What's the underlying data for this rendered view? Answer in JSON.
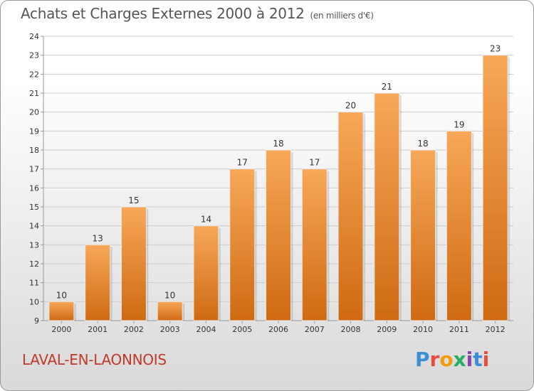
{
  "title": "Achats et Charges Externes 2000 à 2012",
  "unit_label": "(en milliers d'€)",
  "commune": "LAVAL-EN-LAONNOIS",
  "brand": {
    "letters": [
      "P",
      "r",
      "o",
      "x",
      "i",
      "t",
      "i"
    ],
    "colors": [
      "#3b8fd4",
      "#e84c3d",
      "#f39c12",
      "#27ae60",
      "#8e44ad",
      "#3b8fd4",
      "#e84c3d"
    ]
  },
  "colors": {
    "bar_top": "#f7a858",
    "bar_bottom": "#cf6a12",
    "grid": "#cccccc",
    "axis_text": "#333333"
  },
  "chart_data": {
    "type": "bar",
    "categories": [
      "2000",
      "2001",
      "2002",
      "2003",
      "2004",
      "2005",
      "2006",
      "2007",
      "2008",
      "2009",
      "2010",
      "2011",
      "2012"
    ],
    "values": [
      10,
      13,
      15,
      10,
      14,
      17,
      18,
      17,
      20,
      21,
      18,
      19,
      23
    ],
    "ylim": [
      9,
      24
    ],
    "yticks": [
      9,
      10,
      11,
      12,
      13,
      14,
      15,
      16,
      17,
      18,
      19,
      20,
      21,
      22,
      23,
      24
    ],
    "grid": "horizontal",
    "data_labels": true
  }
}
